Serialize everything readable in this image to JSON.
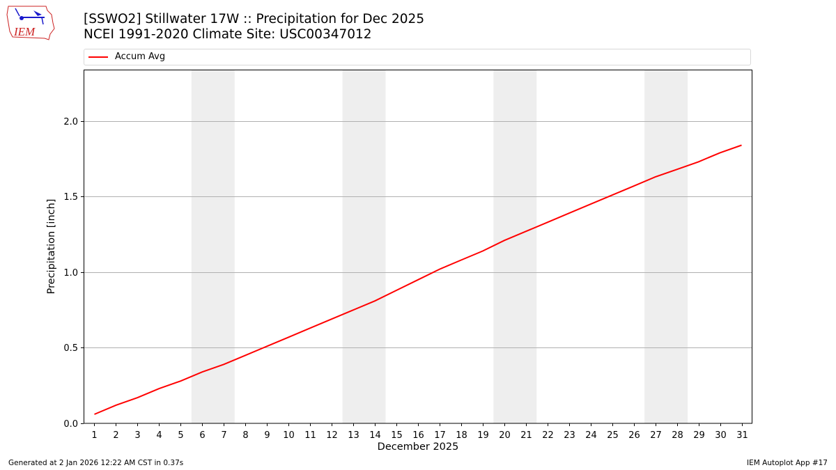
{
  "header": {
    "logo_text": "IEM",
    "title_line1": "[SSWO2] Stillwater 17W :: Precipitation for Dec 2025",
    "title_line2": "NCEI 1991-2020 Climate Site: USC00347012"
  },
  "legend": {
    "entries": [
      {
        "label": "Accum Avg",
        "color": "#ff0000"
      }
    ]
  },
  "footer": {
    "generated": "Generated at 2 Jan 2026 12:22 AM CST in 0.37s",
    "app": "IEM Autoplot App #17"
  },
  "colors": {
    "line": "#ff0000",
    "weekend_band": "#eeeeee",
    "grid": "#b0b0b0",
    "logo_red": "#cc2222",
    "logo_blue": "#1a1acc"
  },
  "chart_data": {
    "type": "line",
    "title": "[SSWO2] Stillwater 17W :: Precipitation for Dec 2025\nNCEI 1991-2020 Climate Site: USC00347012",
    "xlabel": "December 2025",
    "ylabel": "Precipitation [inch]",
    "x": [
      1,
      2,
      3,
      4,
      5,
      6,
      7,
      8,
      9,
      10,
      11,
      12,
      13,
      14,
      15,
      16,
      17,
      18,
      19,
      20,
      21,
      22,
      23,
      24,
      25,
      26,
      27,
      28,
      29,
      30,
      31
    ],
    "x_tick_labels": [
      "1",
      "2",
      "3",
      "4",
      "5",
      "6",
      "7",
      "8",
      "9",
      "10",
      "11",
      "12",
      "13",
      "14",
      "15",
      "16",
      "17",
      "18",
      "19",
      "20",
      "21",
      "22",
      "23",
      "24",
      "25",
      "26",
      "27",
      "28",
      "29",
      "30",
      "31"
    ],
    "series": [
      {
        "name": "Accum Avg",
        "color": "#ff0000",
        "values": [
          0.06,
          0.12,
          0.17,
          0.23,
          0.28,
          0.34,
          0.39,
          0.45,
          0.51,
          0.57,
          0.63,
          0.69,
          0.75,
          0.81,
          0.88,
          0.95,
          1.02,
          1.08,
          1.14,
          1.21,
          1.27,
          1.33,
          1.39,
          1.45,
          1.51,
          1.57,
          1.63,
          1.68,
          1.73,
          1.79,
          1.84
        ]
      }
    ],
    "y_ticks": [
      0.0,
      0.5,
      1.0,
      1.5,
      2.0
    ],
    "y_tick_labels": [
      "0.0",
      "0.5",
      "1.0",
      "1.5",
      "2.0"
    ],
    "ylim": [
      0,
      2.34
    ],
    "xlim": [
      0.5,
      31.5
    ],
    "grid": "horizontal",
    "weekend_bands": [
      [
        5.5,
        7.5
      ],
      [
        12.5,
        14.5
      ],
      [
        19.5,
        21.5
      ],
      [
        26.5,
        28.5
      ]
    ],
    "legend_position": "top, above plot"
  }
}
